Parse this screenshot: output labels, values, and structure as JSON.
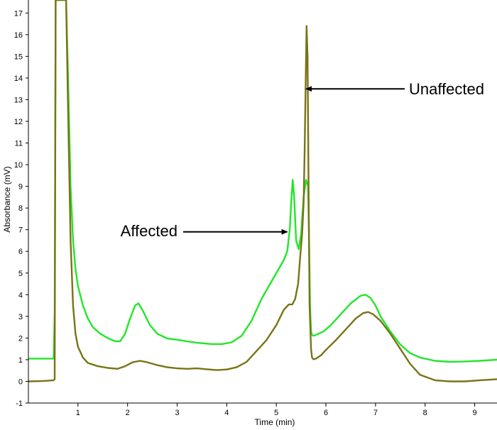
{
  "chart_data": {
    "type": "line",
    "title": "",
    "xlabel": "Time (min)",
    "ylabel": "Absorbance (mV)",
    "xlim": [
      0.0,
      9.45
    ],
    "ylim": [
      -1.0,
      17.6
    ],
    "x_ticks": [
      1,
      2,
      3,
      4,
      5,
      6,
      7,
      8,
      9
    ],
    "y_ticks": [
      -1,
      0,
      1,
      2,
      3,
      4,
      5,
      6,
      7,
      8,
      9,
      10,
      11,
      12,
      13,
      14,
      15,
      16,
      17
    ],
    "grid": false,
    "legend": "none",
    "series": [
      {
        "color": "#22e62a",
        "x": [
          0.0,
          0.3,
          0.51,
          0.53,
          0.55,
          0.58,
          0.62,
          0.7,
          0.74,
          0.76,
          0.8,
          0.85,
          0.9,
          0.95,
          1.0,
          1.1,
          1.2,
          1.3,
          1.45,
          1.6,
          1.75,
          1.85,
          1.95,
          2.05,
          2.15,
          2.22,
          2.3,
          2.45,
          2.6,
          2.8,
          3.0,
          3.2,
          3.4,
          3.7,
          3.9,
          4.1,
          4.3,
          4.5,
          4.7,
          4.9,
          5.05,
          5.15,
          5.22,
          5.27,
          5.3,
          5.33,
          5.36,
          5.4,
          5.45,
          5.5,
          5.55,
          5.6,
          5.64,
          5.66,
          5.68,
          5.7,
          5.72,
          5.75,
          5.8,
          5.85,
          5.95,
          6.1,
          6.3,
          6.5,
          6.7,
          6.8,
          6.9,
          7.0,
          7.1,
          7.3,
          7.5,
          7.7,
          7.9,
          8.2,
          8.5,
          8.8,
          9.1,
          9.45
        ],
        "y": [
          1.05,
          1.05,
          1.05,
          3.2,
          17.6,
          17.6,
          17.6,
          17.6,
          17.6,
          17.6,
          14.0,
          9.0,
          6.5,
          5.2,
          4.4,
          3.5,
          2.9,
          2.5,
          2.2,
          2.0,
          1.85,
          1.85,
          2.2,
          2.9,
          3.5,
          3.6,
          3.3,
          2.6,
          2.2,
          1.98,
          1.92,
          1.85,
          1.78,
          1.72,
          1.72,
          1.8,
          2.1,
          2.8,
          3.8,
          4.6,
          5.2,
          5.6,
          6.0,
          7.0,
          8.3,
          9.3,
          8.5,
          6.5,
          6.1,
          6.8,
          8.5,
          9.3,
          9.0,
          6.5,
          3.5,
          2.3,
          2.15,
          2.1,
          2.15,
          2.2,
          2.3,
          2.6,
          3.1,
          3.6,
          3.95,
          4.0,
          3.85,
          3.5,
          3.0,
          2.3,
          1.7,
          1.3,
          1.1,
          0.95,
          0.9,
          0.92,
          0.95,
          1.0
        ]
      },
      {
        "color": "#7a7315",
        "x": [
          0.0,
          0.3,
          0.51,
          0.53,
          0.55,
          0.58,
          0.62,
          0.7,
          0.74,
          0.76,
          0.8,
          0.85,
          0.9,
          0.95,
          1.0,
          1.1,
          1.2,
          1.4,
          1.6,
          1.8,
          1.95,
          2.1,
          2.25,
          2.4,
          2.6,
          2.8,
          3.0,
          3.2,
          3.4,
          3.6,
          3.8,
          4.0,
          4.2,
          4.4,
          4.6,
          4.8,
          5.0,
          5.15,
          5.25,
          5.32,
          5.38,
          5.44,
          5.48,
          5.52,
          5.55,
          5.57,
          5.59,
          5.61,
          5.63,
          5.65,
          5.67,
          5.7,
          5.72,
          5.75,
          5.8,
          5.9,
          6.0,
          6.2,
          6.4,
          6.6,
          6.75,
          6.85,
          6.95,
          7.1,
          7.3,
          7.5,
          7.7,
          7.9,
          8.2,
          8.5,
          8.8,
          9.1,
          9.45
        ],
        "y": [
          0.0,
          0.02,
          0.05,
          0.1,
          17.6,
          17.6,
          17.6,
          17.6,
          17.6,
          17.6,
          12.5,
          6.5,
          3.5,
          2.2,
          1.6,
          1.1,
          0.85,
          0.7,
          0.62,
          0.58,
          0.7,
          0.88,
          0.95,
          0.88,
          0.75,
          0.65,
          0.6,
          0.58,
          0.6,
          0.56,
          0.52,
          0.55,
          0.65,
          0.9,
          1.4,
          1.9,
          2.6,
          3.3,
          3.55,
          3.55,
          3.8,
          4.5,
          5.7,
          6.8,
          8.2,
          10.5,
          13.5,
          16.4,
          15.0,
          9.0,
          3.5,
          1.5,
          1.1,
          1.02,
          1.05,
          1.2,
          1.45,
          1.9,
          2.4,
          2.9,
          3.15,
          3.2,
          3.1,
          2.8,
          2.2,
          1.5,
          0.8,
          0.3,
          0.05,
          0.0,
          0.0,
          0.05,
          0.1
        ]
      }
    ],
    "annotations": [
      {
        "text": "Unaffected",
        "arrow_to": [
          5.6,
          13.5
        ]
      },
      {
        "text": "Affected",
        "arrow_to": [
          5.22,
          6.9
        ]
      }
    ]
  }
}
